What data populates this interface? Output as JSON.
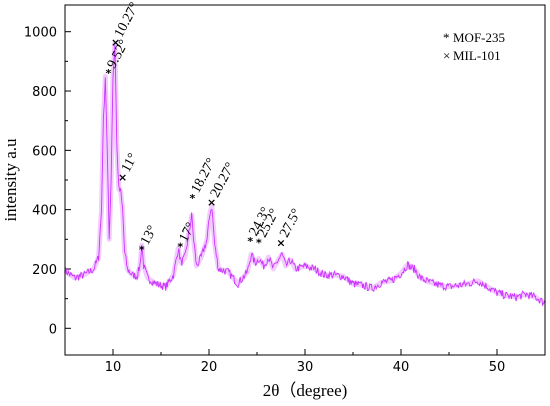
{
  "chart_data": {
    "type": "line",
    "xlabel": "2θ（degree)",
    "ylabel": "intensity a.u",
    "xlim": [
      5,
      55
    ],
    "ylim": [
      -90,
      1090
    ],
    "xticks": [
      10,
      20,
      30,
      40,
      50
    ],
    "yticks": [
      0,
      200,
      400,
      600,
      800,
      1000
    ],
    "grid": false,
    "legend": {
      "position": "top-right",
      "entries": [
        {
          "symbol": "*",
          "label": "MOF-235"
        },
        {
          "symbol": "×",
          "label": "MIL-101"
        }
      ]
    },
    "series": [
      {
        "color": "#cc33ff",
        "x": [
          5,
          6,
          7,
          8,
          8.5,
          8.8,
          9.0,
          9.2,
          9.4,
          9.6,
          9.8,
          10.0,
          10.2,
          10.4,
          10.6,
          10.8,
          11.0,
          11.2,
          11.5,
          12.0,
          12.5,
          12.8,
          13.0,
          13.2,
          13.6,
          14.5,
          15.5,
          16.3,
          16.8,
          17.1,
          17.5,
          17.9,
          18.2,
          18.4,
          18.7,
          19.2,
          19.8,
          20.1,
          20.3,
          20.6,
          21.0,
          22.0,
          23.0,
          24.0,
          24.4,
          24.8,
          25.2,
          25.7,
          26.2,
          26.7,
          27.2,
          27.6,
          28.0,
          28.5,
          29.0,
          30.0,
          31.0,
          32.0,
          33.0,
          34.0,
          35.0,
          36.0,
          37.0,
          38.0,
          39.0,
          40.0,
          40.7,
          41.0,
          41.4,
          42.0,
          43.0,
          44.0,
          45.0,
          46.0,
          47.0,
          48.0,
          49.0,
          50.0,
          51.0,
          52.0,
          53.0,
          54.0,
          55.0
        ],
        "y": [
          195,
          170,
          180,
          200,
          240,
          400,
          700,
          850,
          600,
          300,
          500,
          850,
          960,
          620,
          470,
          460,
          400,
          260,
          200,
          180,
          175,
          210,
          280,
          210,
          170,
          150,
          140,
          180,
          270,
          220,
          240,
          320,
          380,
          300,
          210,
          240,
          300,
          390,
          410,
          280,
          200,
          190,
          150,
          190,
          250,
          220,
          235,
          210,
          240,
          200,
          230,
          250,
          210,
          230,
          200,
          210,
          200,
          180,
          180,
          175,
          150,
          145,
          135,
          155,
          160,
          185,
          215,
          205,
          200,
          170,
          155,
          145,
          140,
          145,
          150,
          160,
          140,
          120,
          110,
          105,
          115,
          105,
          85
        ]
      }
    ],
    "annotations": [
      {
        "x": 9.52,
        "y": 860,
        "marker": "*",
        "label": "9.52°"
      },
      {
        "x": 10.27,
        "y": 965,
        "marker": "×",
        "label": "10.27°"
      },
      {
        "x": 11.0,
        "y": 510,
        "marker": "×",
        "label": "11°"
      },
      {
        "x": 13.0,
        "y": 265,
        "marker": "*",
        "label": "13°"
      },
      {
        "x": 17.0,
        "y": 275,
        "marker": "*",
        "label": "17°"
      },
      {
        "x": 18.27,
        "y": 440,
        "marker": "*",
        "label": "18.27°"
      },
      {
        "x": 20.27,
        "y": 425,
        "marker": "×",
        "label": "20.27°"
      },
      {
        "x": 24.3,
        "y": 295,
        "marker": "*",
        "label": "24.3°"
      },
      {
        "x": 25.2,
        "y": 290,
        "marker": "*",
        "label": "25.2°"
      },
      {
        "x": 27.5,
        "y": 290,
        "marker": "×",
        "label": "27.5°"
      }
    ]
  }
}
